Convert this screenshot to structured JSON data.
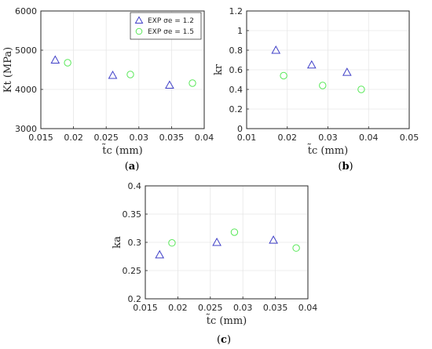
{
  "colors": {
    "exp12": "#4040c8",
    "exp15": "#58e858"
  },
  "legend": [
    {
      "label": "EXP σe = 1.2",
      "marker": "triangle"
    },
    {
      "label": "EXP σe = 1.5",
      "marker": "circle"
    }
  ],
  "chart_data": [
    {
      "type": "scatter",
      "panel": "(a)",
      "caption_letter": "a",
      "xlabel": "t̃c (mm)",
      "ylabel": "Kt (MPa)",
      "xlim": [
        0.015,
        0.04
      ],
      "ylim": [
        3000,
        6000
      ],
      "xticks": [
        "0.015",
        "0.02",
        "0.025",
        "0.03",
        "0.035",
        "0.04"
      ],
      "yticks": [
        "3000",
        "4000",
        "5000",
        "6000"
      ],
      "grid": true,
      "legend_position": "top-right",
      "series": [
        {
          "name": "EXP σe = 1.2",
          "marker": "triangle",
          "x": [
            0.0172,
            0.026,
            0.0347
          ],
          "y": [
            4750,
            4360,
            4110
          ]
        },
        {
          "name": "EXP σe = 1.5",
          "marker": "circle",
          "x": [
            0.0191,
            0.0287,
            0.0382
          ],
          "y": [
            4680,
            4380,
            4160
          ]
        }
      ]
    },
    {
      "type": "scatter",
      "panel": "(b)",
      "caption_letter": "b",
      "xlabel": "t̃c (mm)",
      "ylabel": "kr",
      "xlim": [
        0.01,
        0.05
      ],
      "ylim": [
        0,
        1.2
      ],
      "xticks": [
        "0.01",
        "0.02",
        "0.03",
        "0.04",
        "0.05"
      ],
      "yticks": [
        "0",
        "0.2",
        "0.4",
        "0.6",
        "0.8",
        "1",
        "1.2"
      ],
      "grid": true,
      "series": [
        {
          "name": "EXP σe = 1.2",
          "marker": "triangle",
          "x": [
            0.0172,
            0.026,
            0.0347
          ],
          "y": [
            0.8,
            0.65,
            0.575
          ]
        },
        {
          "name": "EXP σe = 1.5",
          "marker": "circle",
          "x": [
            0.0191,
            0.0287,
            0.0382
          ],
          "y": [
            0.54,
            0.44,
            0.4
          ]
        }
      ]
    },
    {
      "type": "scatter",
      "panel": "(c)",
      "caption_letter": "c",
      "xlabel": "t̃c (mm)",
      "ylabel": "ka",
      "xlim": [
        0.015,
        0.04
      ],
      "ylim": [
        0.2,
        0.4
      ],
      "xticks": [
        "0.015",
        "0.02",
        "0.025",
        "0.03",
        "0.035",
        "0.04"
      ],
      "yticks": [
        "0.2",
        "0.25",
        "0.3",
        "0.35",
        "0.4"
      ],
      "grid": true,
      "series": [
        {
          "name": "EXP σe = 1.2",
          "marker": "triangle",
          "x": [
            0.0172,
            0.026,
            0.0347
          ],
          "y": [
            0.278,
            0.3,
            0.304
          ]
        },
        {
          "name": "EXP σe = 1.5",
          "marker": "circle",
          "x": [
            0.0191,
            0.0287,
            0.0382
          ],
          "y": [
            0.299,
            0.318,
            0.29
          ]
        }
      ]
    }
  ]
}
